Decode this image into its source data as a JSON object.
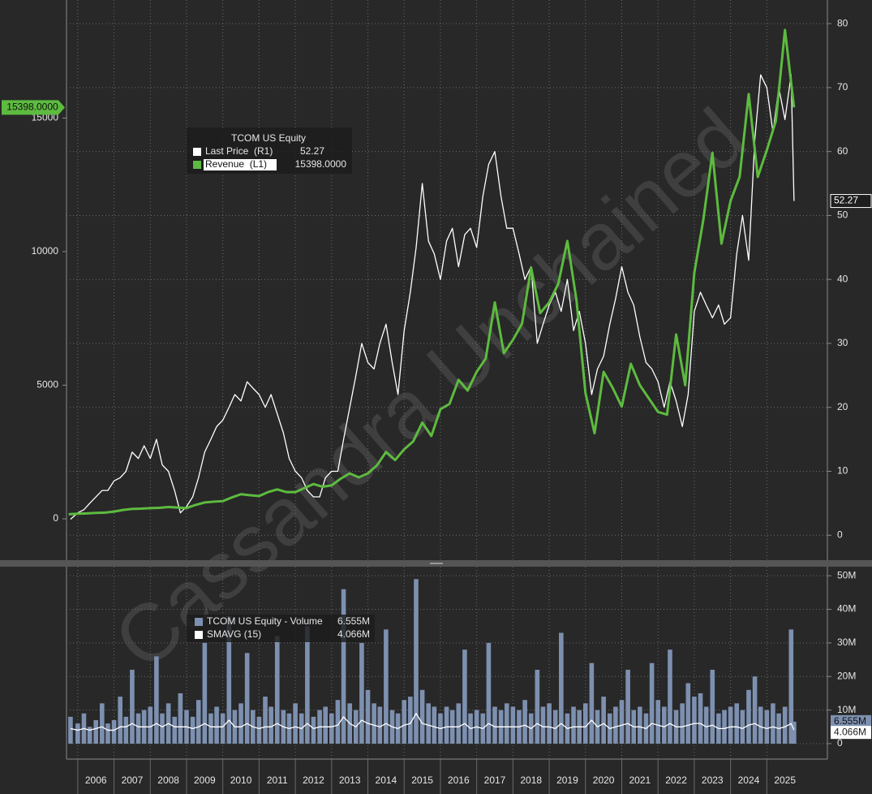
{
  "chart_data": [
    {
      "type": "line",
      "legend_title": "TCOM US Equity",
      "watermark": "Cassandra Unchained",
      "xlim": [
        2005.69,
        2026.67
      ],
      "xticks": [
        2006,
        2007,
        2008,
        2009,
        2010,
        2011,
        2012,
        2013,
        2014,
        2015,
        2016,
        2017,
        2018,
        2019,
        2020,
        2021,
        2022,
        2023,
        2024,
        2025
      ],
      "ylim": [
        -1550,
        19420
      ],
      "yticks": [
        0,
        5000,
        10000,
        15000
      ],
      "y2lim": [
        -3.9,
        83.7
      ],
      "y2ticks": [
        0,
        10,
        20,
        30,
        40,
        50,
        60,
        70,
        80
      ],
      "grid": true,
      "series": [
        {
          "name": "Last Price  (R1)",
          "axis": "y2",
          "color": "#ffffff",
          "last_label": "52.27",
          "x": [
            2005.8,
            2006,
            2006.17,
            2006.33,
            2006.5,
            2006.67,
            2006.83,
            2007,
            2007.17,
            2007.33,
            2007.5,
            2007.67,
            2007.83,
            2008,
            2008.17,
            2008.33,
            2008.5,
            2008.67,
            2008.83,
            2009,
            2009.17,
            2009.33,
            2009.5,
            2009.67,
            2009.83,
            2010,
            2010.17,
            2010.33,
            2010.5,
            2010.67,
            2010.83,
            2011,
            2011.17,
            2011.33,
            2011.5,
            2011.67,
            2011.83,
            2012,
            2012.17,
            2012.33,
            2012.5,
            2012.67,
            2012.83,
            2013,
            2013.17,
            2013.33,
            2013.5,
            2013.67,
            2013.83,
            2014,
            2014.17,
            2014.33,
            2014.5,
            2014.67,
            2014.83,
            2015,
            2015.17,
            2015.33,
            2015.5,
            2015.67,
            2015.83,
            2016,
            2016.17,
            2016.33,
            2016.5,
            2016.67,
            2016.83,
            2017,
            2017.17,
            2017.33,
            2017.5,
            2017.67,
            2017.83,
            2018,
            2018.17,
            2018.33,
            2018.5,
            2018.67,
            2018.83,
            2019,
            2019.17,
            2019.33,
            2019.5,
            2019.67,
            2019.83,
            2020,
            2020.17,
            2020.33,
            2020.5,
            2020.67,
            2020.83,
            2021,
            2021.17,
            2021.33,
            2021.5,
            2021.67,
            2021.83,
            2022,
            2022.17,
            2022.33,
            2022.5,
            2022.67,
            2022.83,
            2023,
            2023.17,
            2023.33,
            2023.5,
            2023.67,
            2023.83,
            2024,
            2024.17,
            2024.33,
            2024.5,
            2024.67,
            2024.83,
            2025,
            2025.17,
            2025.33,
            2025.5,
            2025.67,
            2025.75
          ],
          "values": [
            2.5,
            3.5,
            4,
            5,
            6,
            7,
            7,
            8.5,
            9,
            10,
            13,
            12,
            14,
            12,
            15,
            11,
            10,
            7,
            3.5,
            4.5,
            6,
            9,
            13,
            15,
            17,
            18,
            20,
            22,
            21,
            24,
            23,
            22,
            20,
            22,
            19,
            16,
            12,
            10,
            9,
            7,
            6,
            6,
            9,
            10,
            10,
            15,
            20,
            25,
            30,
            27,
            26,
            30,
            33,
            27,
            22,
            32,
            38,
            45,
            55,
            46,
            44,
            40,
            46,
            48,
            42,
            47,
            48,
            45,
            53,
            58,
            60,
            53,
            48,
            48,
            44,
            40,
            42,
            30,
            33,
            36,
            38,
            35,
            40,
            32,
            35,
            30,
            22,
            26,
            28,
            33,
            37,
            42,
            38,
            36,
            31,
            27,
            26,
            24,
            20,
            24,
            21,
            17,
            22,
            35,
            38,
            36,
            34,
            36,
            33,
            34,
            44,
            50,
            43,
            62,
            72,
            70,
            63,
            70,
            65,
            72,
            52.27
          ]
        },
        {
          "name": "Revenue  (L1)",
          "color": "#5dbb3f",
          "last_label": "15398.0000",
          "x": [
            2005.75,
            2006,
            2006.25,
            2006.5,
            2006.75,
            2007,
            2007.25,
            2007.5,
            2007.75,
            2008,
            2008.25,
            2008.5,
            2008.75,
            2009,
            2009.25,
            2009.5,
            2009.75,
            2010,
            2010.25,
            2010.5,
            2010.75,
            2011,
            2011.25,
            2011.5,
            2011.75,
            2012,
            2012.25,
            2012.5,
            2012.75,
            2013,
            2013.25,
            2013.5,
            2013.75,
            2014,
            2014.25,
            2014.5,
            2014.75,
            2015,
            2015.25,
            2015.5,
            2015.75,
            2016,
            2016.25,
            2016.5,
            2016.75,
            2017,
            2017.25,
            2017.5,
            2017.75,
            2018,
            2018.25,
            2018.5,
            2018.75,
            2019,
            2019.25,
            2019.5,
            2019.75,
            2020,
            2020.25,
            2020.5,
            2020.75,
            2021,
            2021.25,
            2021.5,
            2021.75,
            2022,
            2022.25,
            2022.5,
            2022.75,
            2023,
            2023.25,
            2023.5,
            2023.75,
            2024,
            2024.25,
            2024.5,
            2024.75,
            2025,
            2025.25,
            2025.5,
            2025.75
          ],
          "values": [
            170,
            190,
            200,
            220,
            230,
            270,
            330,
            370,
            380,
            400,
            410,
            440,
            420,
            400,
            520,
            610,
            640,
            660,
            800,
            920,
            880,
            850,
            1000,
            1100,
            1000,
            1000,
            1150,
            1300,
            1200,
            1250,
            1500,
            1700,
            1550,
            1700,
            2000,
            2500,
            2200,
            2600,
            2900,
            3600,
            3100,
            4100,
            4300,
            5200,
            4800,
            5500,
            6000,
            8100,
            6200,
            6700,
            7300,
            9400,
            7700,
            8100,
            8800,
            10400,
            8200,
            4700,
            3200,
            5500,
            4900,
            4200,
            5800,
            5000,
            4500,
            4000,
            3900,
            6900,
            5000,
            9200,
            11200,
            13700,
            10300,
            11900,
            12800,
            15900,
            12800,
            13800,
            14900,
            18300,
            15398
          ]
        }
      ]
    },
    {
      "type": "bar",
      "y_axis_side": "right",
      "xlim": [
        2005.69,
        2026.67
      ],
      "xticks": [
        2006,
        2007,
        2008,
        2009,
        2010,
        2011,
        2012,
        2013,
        2014,
        2015,
        2016,
        2017,
        2018,
        2019,
        2020,
        2021,
        2022,
        2023,
        2024,
        2025
      ],
      "ylim": [
        -4.6,
        52.7
      ],
      "yticks": [
        0,
        {
          "value": 10,
          "label": "10M"
        },
        {
          "value": 20,
          "label": "20M"
        },
        {
          "value": 30,
          "label": "30M"
        },
        {
          "value": 40,
          "label": "40M"
        },
        {
          "value": 50,
          "label": "50M"
        }
      ],
      "grid": true,
      "series": [
        {
          "name": "TCOM US Equity - Volume",
          "type": "bar",
          "color": "#7d90b0",
          "last_label": "6.555M",
          "x": [
            2005.8,
            2006,
            2006.17,
            2006.33,
            2006.5,
            2006.67,
            2006.83,
            2007,
            2007.17,
            2007.33,
            2007.5,
            2007.67,
            2007.83,
            2008,
            2008.17,
            2008.33,
            2008.5,
            2008.67,
            2008.83,
            2009,
            2009.17,
            2009.33,
            2009.5,
            2009.67,
            2009.83,
            2010,
            2010.17,
            2010.33,
            2010.5,
            2010.67,
            2010.83,
            2011,
            2011.17,
            2011.33,
            2011.5,
            2011.67,
            2011.83,
            2012,
            2012.17,
            2012.33,
            2012.5,
            2012.67,
            2012.83,
            2013,
            2013.17,
            2013.33,
            2013.5,
            2013.67,
            2013.83,
            2014,
            2014.17,
            2014.33,
            2014.5,
            2014.67,
            2014.83,
            2015,
            2015.17,
            2015.33,
            2015.5,
            2015.67,
            2015.83,
            2016,
            2016.17,
            2016.33,
            2016.5,
            2016.67,
            2016.83,
            2017,
            2017.17,
            2017.33,
            2017.5,
            2017.67,
            2017.83,
            2018,
            2018.17,
            2018.33,
            2018.5,
            2018.67,
            2018.83,
            2019,
            2019.17,
            2019.33,
            2019.5,
            2019.67,
            2019.83,
            2020,
            2020.17,
            2020.33,
            2020.5,
            2020.67,
            2020.83,
            2021,
            2021.17,
            2021.33,
            2021.5,
            2021.67,
            2021.83,
            2022,
            2022.17,
            2022.33,
            2022.5,
            2022.67,
            2022.83,
            2023,
            2023.17,
            2023.33,
            2023.5,
            2023.67,
            2023.83,
            2024,
            2024.17,
            2024.33,
            2024.5,
            2024.67,
            2024.83,
            2025,
            2025.17,
            2025.33,
            2025.5,
            2025.67,
            2025.75
          ],
          "values": [
            8,
            6,
            9,
            5,
            7,
            12,
            6,
            7,
            14,
            8,
            22,
            9,
            10,
            11,
            26,
            9,
            12,
            8,
            15,
            10,
            8,
            13,
            30,
            9,
            11,
            9,
            38,
            10,
            12,
            27,
            10,
            8,
            14,
            11,
            32,
            10,
            9,
            12,
            9,
            35,
            8,
            10,
            11,
            9,
            13,
            46,
            12,
            10,
            30,
            16,
            12,
            11,
            34,
            10,
            9,
            13,
            14,
            49,
            16,
            12,
            11,
            9,
            11,
            10,
            12,
            28,
            9,
            10,
            9,
            30,
            11,
            10,
            12,
            11,
            10,
            13,
            9,
            22,
            11,
            12,
            10,
            33,
            9,
            11,
            10,
            12,
            24,
            10,
            14,
            9,
            11,
            13,
            22,
            10,
            11,
            9,
            24,
            13,
            11,
            28,
            10,
            12,
            18,
            14,
            15,
            11,
            22,
            9,
            10,
            11,
            12,
            10,
            16,
            20,
            11,
            10,
            12,
            9,
            11,
            34,
            6.555
          ]
        },
        {
          "name": "SMAVG (15)",
          "type": "line",
          "color": "#ffffff",
          "last_label": "4.066M",
          "x": [
            2005.8,
            2006,
            2006.17,
            2006.33,
            2006.5,
            2006.67,
            2006.83,
            2007,
            2007.17,
            2007.33,
            2007.5,
            2007.67,
            2007.83,
            2008,
            2008.17,
            2008.33,
            2008.5,
            2008.67,
            2008.83,
            2009,
            2009.17,
            2009.33,
            2009.5,
            2009.67,
            2009.83,
            2010,
            2010.17,
            2010.33,
            2010.5,
            2010.67,
            2010.83,
            2011,
            2011.17,
            2011.33,
            2011.5,
            2011.67,
            2011.83,
            2012,
            2012.17,
            2012.33,
            2012.5,
            2012.67,
            2012.83,
            2013,
            2013.17,
            2013.33,
            2013.5,
            2013.67,
            2013.83,
            2014,
            2014.17,
            2014.33,
            2014.5,
            2014.67,
            2014.83,
            2015,
            2015.17,
            2015.33,
            2015.5,
            2015.67,
            2015.83,
            2016,
            2016.17,
            2016.33,
            2016.5,
            2016.67,
            2016.83,
            2017,
            2017.17,
            2017.33,
            2017.5,
            2017.67,
            2017.83,
            2018,
            2018.17,
            2018.33,
            2018.5,
            2018.67,
            2018.83,
            2019,
            2019.17,
            2019.33,
            2019.5,
            2019.67,
            2019.83,
            2020,
            2020.17,
            2020.33,
            2020.5,
            2020.67,
            2020.83,
            2021,
            2021.17,
            2021.33,
            2021.5,
            2021.67,
            2021.83,
            2022,
            2022.17,
            2022.33,
            2022.5,
            2022.67,
            2022.83,
            2023,
            2023.17,
            2023.33,
            2023.5,
            2023.67,
            2023.83,
            2024,
            2024.17,
            2024.33,
            2024.5,
            2024.67,
            2024.83,
            2025,
            2025.17,
            2025.33,
            2025.5,
            2025.67,
            2025.75
          ],
          "values": [
            4.5,
            4,
            4.5,
            4,
            4.5,
            5,
            4,
            4,
            5,
            5,
            6,
            5,
            5,
            5,
            6,
            5,
            6,
            5,
            5,
            5,
            4.5,
            5,
            6,
            5,
            5,
            5,
            7,
            5,
            5,
            6,
            5,
            4.5,
            5,
            5,
            6,
            5,
            4.5,
            5,
            4.5,
            6,
            4.5,
            5,
            5,
            5,
            5.5,
            8,
            6,
            5,
            7,
            6,
            5.5,
            5,
            6,
            5,
            4.5,
            5.5,
            6,
            9,
            6,
            5.5,
            5,
            4.5,
            5,
            5,
            5,
            6,
            4.5,
            5,
            4.5,
            6,
            5,
            5,
            5,
            5,
            5,
            5.5,
            4.5,
            6,
            5,
            5,
            4.5,
            6,
            4.5,
            5,
            5,
            5,
            7,
            5,
            6,
            4.5,
            5,
            5.5,
            6,
            5,
            5,
            4.5,
            6,
            5.5,
            5,
            6,
            5,
            5,
            5.5,
            6,
            6,
            5,
            5.5,
            4.5,
            4.5,
            5,
            5,
            4.5,
            5.5,
            6,
            5,
            4.5,
            5,
            4.5,
            5,
            6,
            4.066
          ]
        }
      ]
    }
  ]
}
